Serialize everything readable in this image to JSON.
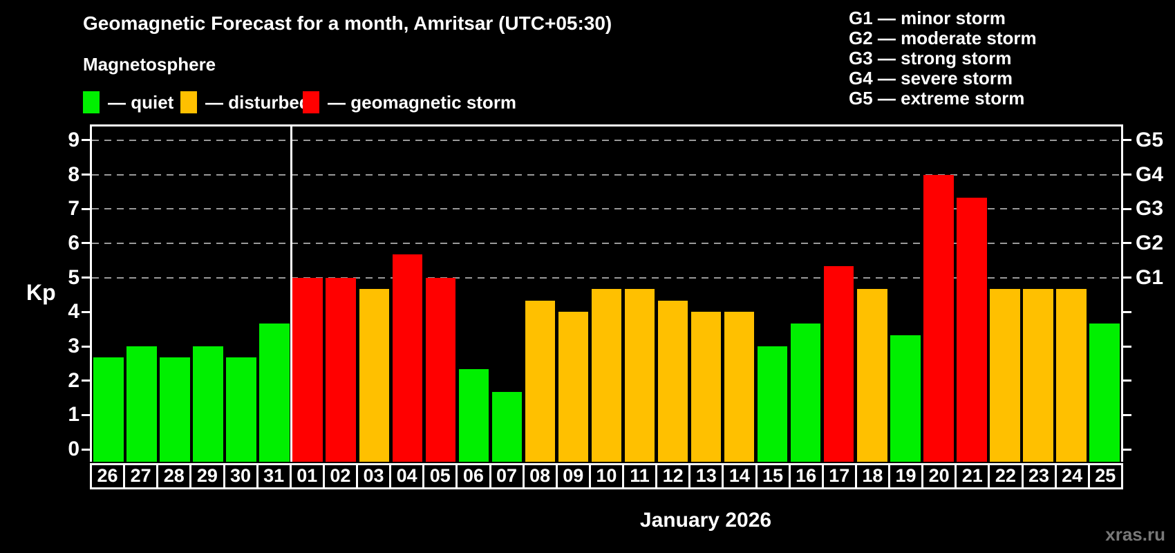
{
  "header": {
    "title": "Geomagnetic Forecast for a month, Amritsar (UTC+05:30)",
    "subtitle": "Magnetosphere"
  },
  "legend": {
    "items": [
      {
        "key": "quiet",
        "label": "— quiet"
      },
      {
        "key": "disturbed",
        "label": "— disturbed"
      },
      {
        "key": "storm",
        "label": "— geomagnetic storm"
      }
    ]
  },
  "storm_scale_legend": {
    "items": [
      {
        "label": "G1 — minor storm"
      },
      {
        "label": "G2 — moderate storm"
      },
      {
        "label": "G3 — strong storm"
      },
      {
        "label": "G4 — severe storm"
      },
      {
        "label": "G5 — extreme storm"
      }
    ]
  },
  "watermark": "xras.ru",
  "chart_data": {
    "type": "bar",
    "title": "Geomagnetic Forecast for a month, Amritsar (UTC+05:30)",
    "ylabel": "Kp",
    "xlabel": "January 2026",
    "ylim": [
      -0.36,
      9.4
    ],
    "yticks": [
      0,
      1,
      2,
      3,
      4,
      5,
      6,
      7,
      8,
      9
    ],
    "grid": "dashed horizontal lines at Kp 5 through 9, legend left of plot, G-scale right of plot",
    "g_levels": [
      {
        "kp": 5,
        "label": "G1"
      },
      {
        "kp": 6,
        "label": "G2"
      },
      {
        "kp": 7,
        "label": "G3"
      },
      {
        "kp": 8,
        "label": "G4"
      },
      {
        "kp": 9,
        "label": "G5"
      }
    ],
    "categories": [
      "26",
      "27",
      "28",
      "29",
      "30",
      "31",
      "01",
      "02",
      "03",
      "04",
      "05",
      "06",
      "07",
      "08",
      "09",
      "10",
      "11",
      "12",
      "13",
      "14",
      "15",
      "16",
      "17",
      "18",
      "19",
      "20",
      "21",
      "22",
      "23",
      "24",
      "25"
    ],
    "values": [
      2.67,
      3,
      2.67,
      3,
      2.67,
      3.67,
      5,
      5,
      4.67,
      5.67,
      5,
      2.33,
      1.67,
      4.33,
      4,
      4.67,
      4.67,
      4.33,
      4,
      4,
      3,
      3.67,
      5.33,
      4.67,
      3.33,
      8,
      7.33,
      4.67,
      4.67,
      4.67,
      3.67
    ],
    "statuses": [
      "quiet",
      "quiet",
      "quiet",
      "quiet",
      "quiet",
      "quiet",
      "storm",
      "storm",
      "disturbed",
      "storm",
      "storm",
      "quiet",
      "quiet",
      "disturbed",
      "disturbed",
      "disturbed",
      "disturbed",
      "disturbed",
      "disturbed",
      "disturbed",
      "quiet",
      "quiet",
      "storm",
      "disturbed",
      "quiet",
      "storm",
      "storm",
      "disturbed",
      "disturbed",
      "disturbed",
      "quiet"
    ],
    "separator_after_index": 5,
    "colors": {
      "quiet": "#00f000",
      "disturbed": "#ffc000",
      "storm": "#ff0000"
    },
    "axis_color": "#ffffff",
    "grid_color": "#9a9a9a"
  }
}
